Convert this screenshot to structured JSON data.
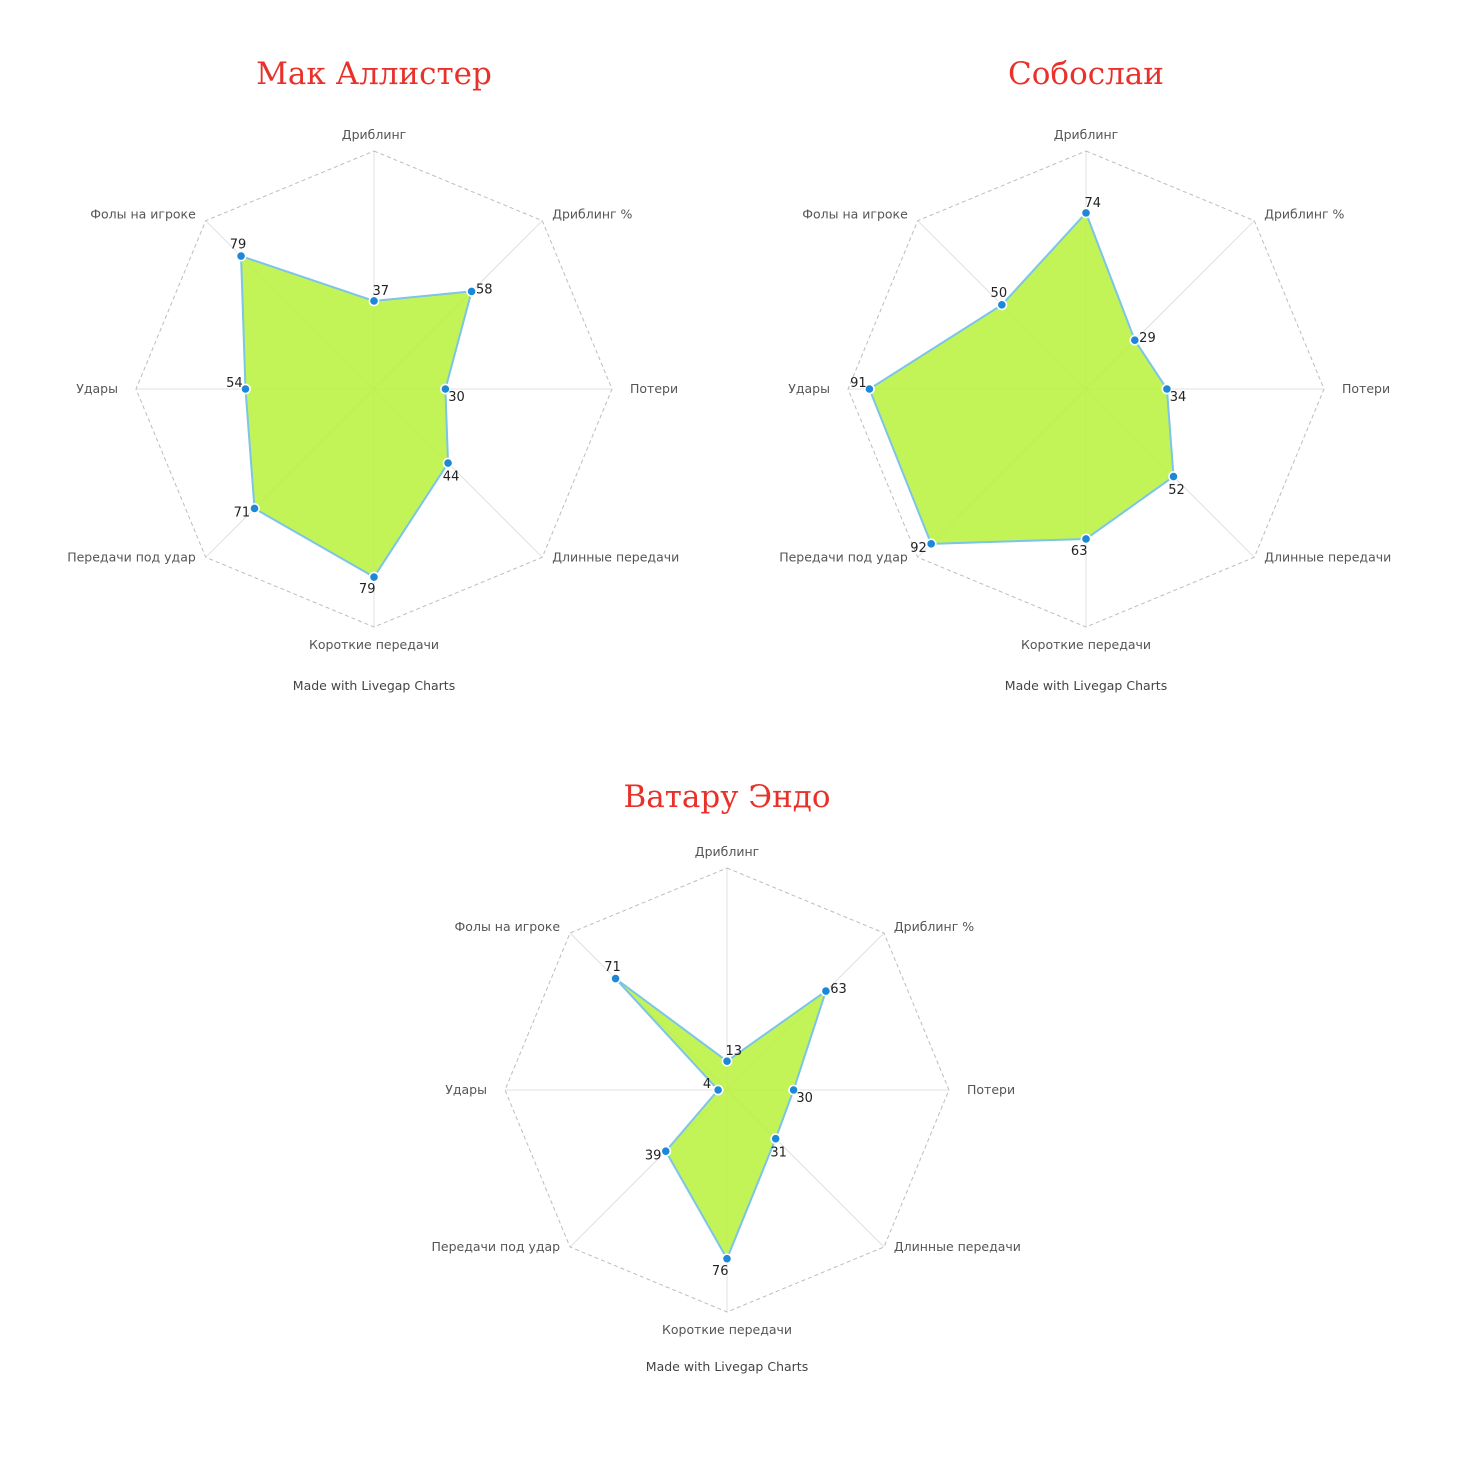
{
  "credit": "Made with Livegap Charts",
  "colors": {
    "title": "#e8312a",
    "fill": "#b8f23a",
    "stroke": "#7cc4e8",
    "point": "#1e88d8",
    "grid_outer": "#bdbdbd",
    "grid_spoke": "#e0e0e0"
  },
  "chart_data": [
    {
      "type": "radar",
      "title": "Мак Аллистер",
      "axes": [
        "Дриблинг",
        "Дриблинг %",
        "Потери",
        "Длинные передачи",
        "Короткие передачи",
        "Передачи под удар",
        "Удары",
        "Фолы на игроке"
      ],
      "values": [
        37,
        58,
        30,
        44,
        79,
        71,
        54,
        79
      ],
      "rlim": [
        0,
        100
      ],
      "footer": "Made with Livegap Charts"
    },
    {
      "type": "radar",
      "title": "Собослаи",
      "axes": [
        "Дриблинг",
        "Дриблинг %",
        "Потери",
        "Длинные передачи",
        "Короткие передачи",
        "Передачи под удар",
        "Удары",
        "Фолы на игроке"
      ],
      "values": [
        74,
        29,
        34,
        52,
        63,
        92,
        91,
        50
      ],
      "rlim": [
        0,
        100
      ],
      "footer": "Made with Livegap Charts"
    },
    {
      "type": "radar",
      "title": "Ватару Эндо",
      "axes": [
        "Дриблинг",
        "Дриблинг %",
        "Потери",
        "Длинные передачи",
        "Короткие передачи",
        "Передачи под удар",
        "Удары",
        "Фолы на игроке"
      ],
      "values": [
        13,
        63,
        30,
        31,
        76,
        39,
        4,
        71
      ],
      "rlim": [
        0,
        100
      ],
      "footer": "Made with Livegap Charts"
    }
  ]
}
